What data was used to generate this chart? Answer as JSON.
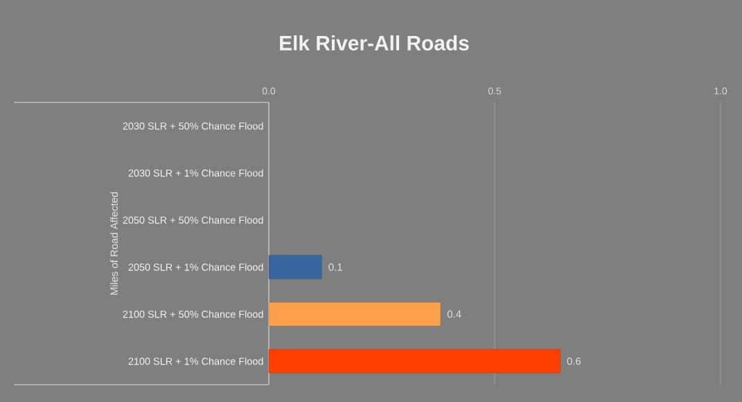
{
  "chart_data": {
    "type": "bar",
    "orientation": "horizontal",
    "title": "Elk River-All Roads",
    "ylabel": "Miles of Road Affected",
    "categories": [
      "2030 SLR + 50% Chance Flood",
      "2030 SLR + 1% Chance Flood",
      "2050 SLR + 50% Chance Flood",
      "2050 SLR + 1% Chance Flood",
      "2100 SLR + 50% Chance Flood",
      "2100 SLR + 1% Chance Flood"
    ],
    "values": [
      null,
      null,
      null,
      0.117,
      0.38,
      0.645
    ],
    "value_labels": [
      null,
      null,
      null,
      "0.1",
      "0.4",
      "0.6"
    ],
    "colors": [
      "#3a66a0",
      "#3a66a0",
      "#3a66a0",
      "#3a66a0",
      "#fca04c",
      "#ff3f00"
    ],
    "xlim": [
      0,
      1
    ],
    "xticks": [
      {
        "value": 0,
        "label": "0.0"
      },
      {
        "value": 0.5,
        "label": "0.5"
      },
      {
        "value": 1,
        "label": "1.0"
      }
    ],
    "grid": "x"
  }
}
